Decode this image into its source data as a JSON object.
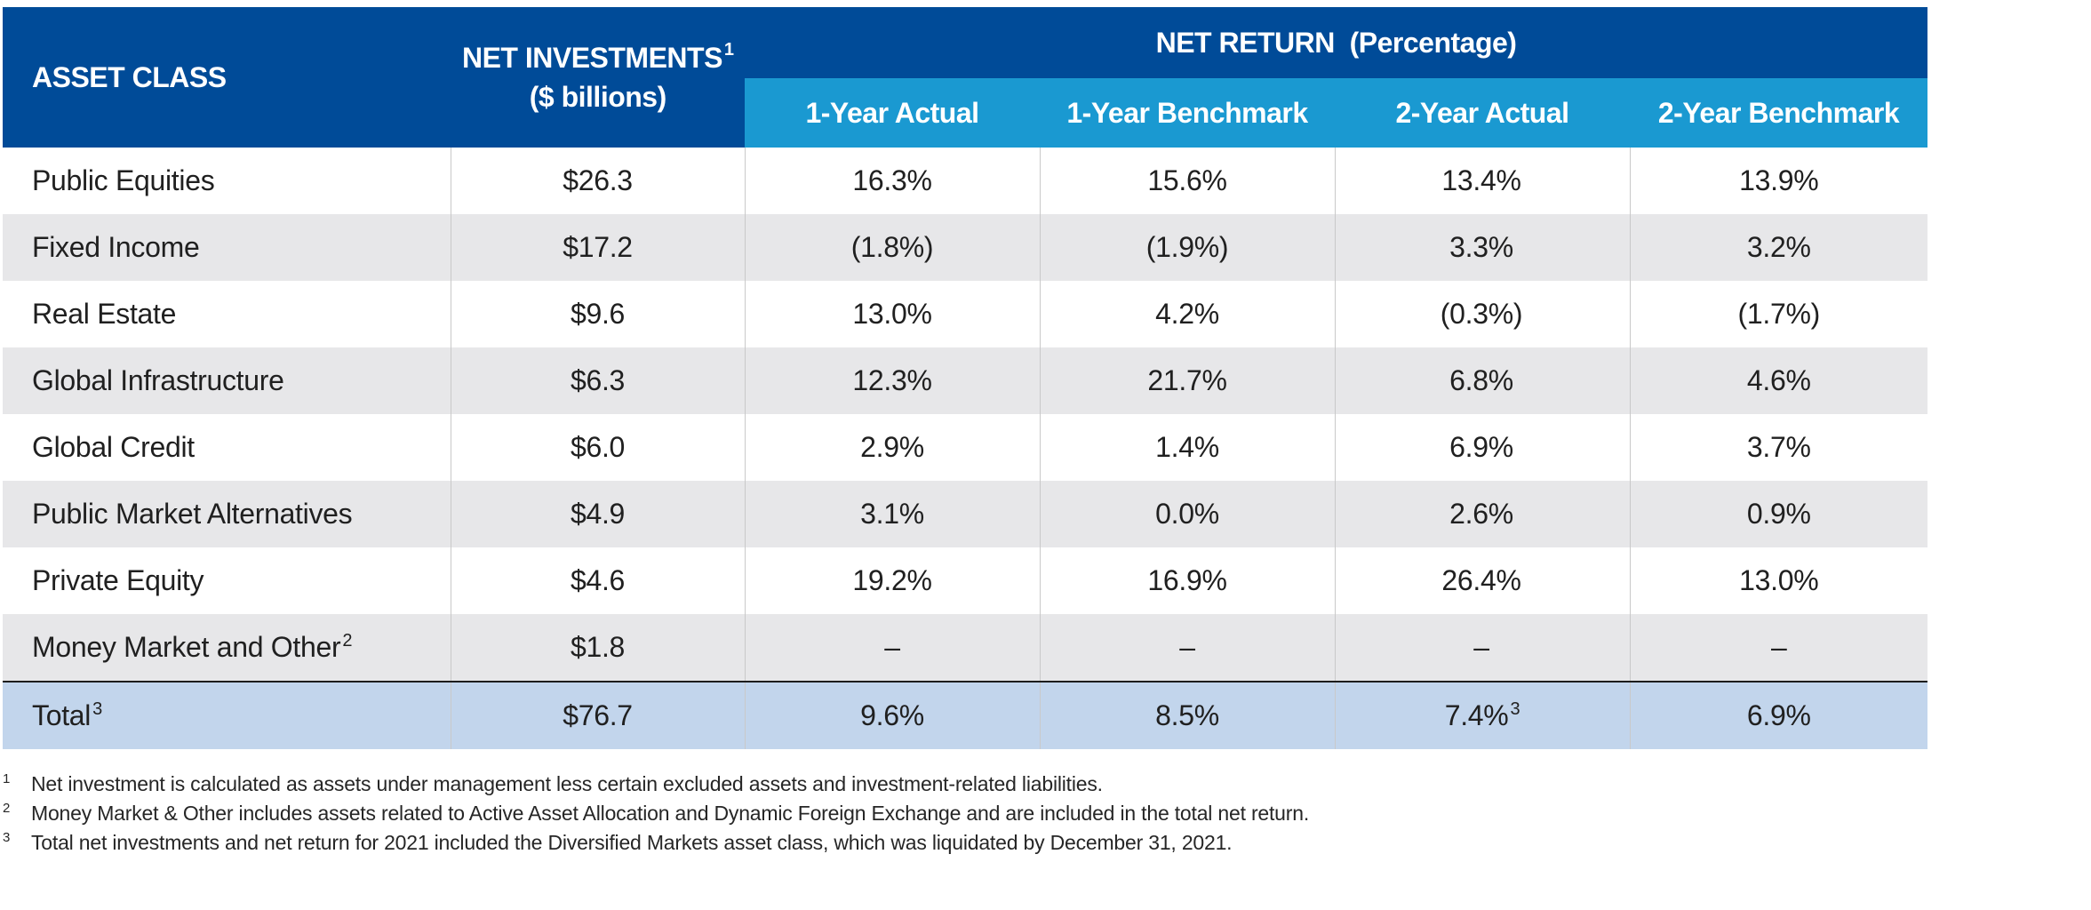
{
  "table": {
    "header": {
      "asset_class": "ASSET CLASS",
      "net_investments_line1": "NET INVESTMENTS",
      "net_investments_sup": "1",
      "net_investments_line2": "($ billions)",
      "net_return": "NET RETURN  (Percentage)",
      "sub_columns": [
        "1-Year Actual",
        "1-Year Benchmark",
        "2-Year Actual",
        "2-Year Benchmark"
      ]
    },
    "rows": [
      {
        "asset": "Public Equities",
        "asset_sup": "",
        "net_investments": "$26.3",
        "y1_actual": "16.3%",
        "y1_bench": "15.6%",
        "y2_actual": "13.4%",
        "y2_actual_sup": "",
        "y2_bench": "13.9%"
      },
      {
        "asset": "Fixed Income",
        "asset_sup": "",
        "net_investments": "$17.2",
        "y1_actual": "(1.8%)",
        "y1_bench": "(1.9%)",
        "y2_actual": "3.3%",
        "y2_actual_sup": "",
        "y2_bench": "3.2%"
      },
      {
        "asset": "Real Estate",
        "asset_sup": "",
        "net_investments": "$9.6",
        "y1_actual": "13.0%",
        "y1_bench": "4.2%",
        "y2_actual": "(0.3%)",
        "y2_actual_sup": "",
        "y2_bench": "(1.7%)"
      },
      {
        "asset": "Global Infrastructure",
        "asset_sup": "",
        "net_investments": "$6.3",
        "y1_actual": "12.3%",
        "y1_bench": "21.7%",
        "y2_actual": "6.8%",
        "y2_actual_sup": "",
        "y2_bench": "4.6%"
      },
      {
        "asset": "Global Credit",
        "asset_sup": "",
        "net_investments": "$6.0",
        "y1_actual": "2.9%",
        "y1_bench": "1.4%",
        "y2_actual": "6.9%",
        "y2_actual_sup": "",
        "y2_bench": "3.7%"
      },
      {
        "asset": "Public Market Alternatives",
        "asset_sup": "",
        "net_investments": "$4.9",
        "y1_actual": "3.1%",
        "y1_bench": "0.0%",
        "y2_actual": "2.6%",
        "y2_actual_sup": "",
        "y2_bench": "0.9%"
      },
      {
        "asset": "Private Equity",
        "asset_sup": "",
        "net_investments": "$4.6",
        "y1_actual": "19.2%",
        "y1_bench": "16.9%",
        "y2_actual": "26.4%",
        "y2_actual_sup": "",
        "y2_bench": "13.0%"
      },
      {
        "asset": "Money Market and Other",
        "asset_sup": "2",
        "net_investments": "$1.8",
        "y1_actual": "–",
        "y1_bench": "–",
        "y2_actual": "–",
        "y2_actual_sup": "",
        "y2_bench": "–"
      }
    ],
    "total": {
      "asset": "Total",
      "asset_sup": "3",
      "net_investments": "$76.7",
      "y1_actual": "9.6%",
      "y1_bench": "8.5%",
      "y2_actual": "7.4%",
      "y2_actual_sup": "3",
      "y2_bench": "6.9%"
    }
  },
  "footnotes": [
    {
      "mark": "1",
      "text": "Net investment is calculated as assets under management less certain excluded assets and investment-related liabilities."
    },
    {
      "mark": "2",
      "text": "Money Market & Other includes assets related to Active Asset Allocation and Dynamic Foreign Exchange and are included in the total net return."
    },
    {
      "mark": "3",
      "text": "Total net investments and net return for 2021 included the Diversified Markets asset class, which was liquidated by December 31, 2021."
    }
  ],
  "colors": {
    "header_dark": "#004b98",
    "header_light": "#1a99d1",
    "row_alt": "#e7e7e9",
    "total_row": "#c2d5ec"
  }
}
